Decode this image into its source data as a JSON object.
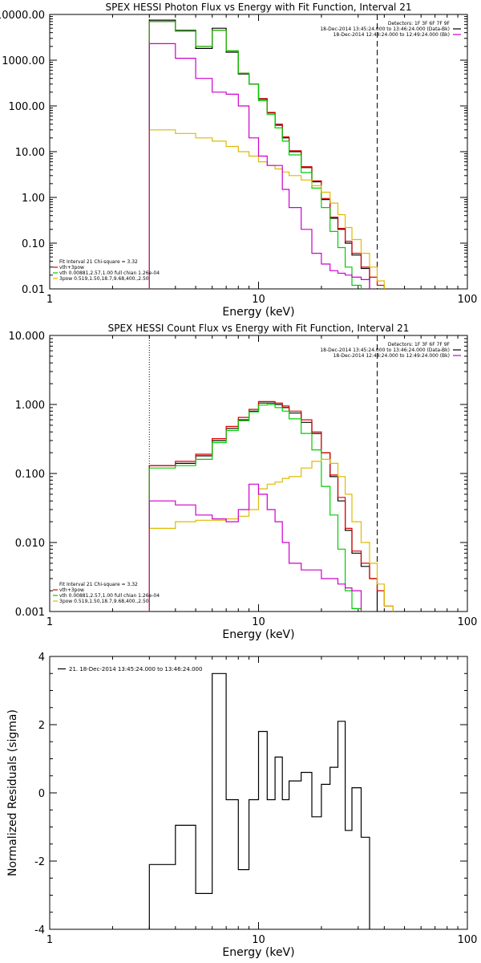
{
  "chart_data": [
    {
      "type": "line",
      "title": "SPEX HESSI Photon Flux vs Energy with Fit Function, Interval 21",
      "xlabel": "Energy (keV)",
      "ylabel": "",
      "xscale": "log",
      "yscale": "log",
      "xlim": [
        1,
        100
      ],
      "ylim": [
        0.01,
        10000
      ],
      "xticks": [
        1,
        10,
        100
      ],
      "xtick_labels": [
        "1",
        "10",
        "100"
      ],
      "yticks": [
        0.01,
        0.1,
        1,
        10,
        100,
        1000,
        10000
      ],
      "ytick_labels": [
        "0.01",
        "0.10",
        "1.00",
        "10.00",
        "100.00",
        "1000.00",
        "10000.00"
      ],
      "vlines": [
        {
          "x": 3,
          "style": "dotted",
          "color": "#000000"
        },
        {
          "x": 37,
          "style": "dashed",
          "color": "#000000"
        }
      ],
      "legend_top_right": {
        "lines": [
          {
            "text": "Detectors: 1F 3F 6F 7F 9F",
            "color": ""
          },
          {
            "text": "18-Dec-2014 13:45:24.000 to 13:46:24.000 (Data-Bk)",
            "color": "#000000"
          },
          {
            "text": "18-Dec-2014 12:48:24.000 to 12:49:24.000 (Bk)",
            "color": "#cc00cc"
          }
        ]
      },
      "legend_bottom_left": {
        "lines": [
          {
            "text": "Fit Interval 21    Chi-square = 3.32",
            "color": ""
          },
          {
            "text": "vth+3pow",
            "color": "#dd0000"
          },
          {
            "text": "vth 0.00881,2.57,1.00  full chian 1.26e-04",
            "color": "#00cc00"
          },
          {
            "text": "3pow 0.519,1.50,18.7,9.68,400.,2.50",
            "color": "#ddbb00"
          }
        ]
      },
      "bin_edges": [
        3,
        4,
        5,
        6,
        7,
        8,
        9,
        10,
        11,
        12,
        13,
        14,
        16,
        18,
        20,
        22,
        24,
        26,
        28,
        31,
        34,
        37,
        40
      ],
      "series": [
        {
          "name": "18-Dec-2014 13:45:24.000 to 13:46:24.000 (Data-Bk)",
          "color": "#000000",
          "values": [
            7500,
            4500,
            1800,
            5000,
            1500,
            500,
            300,
            140,
            70,
            38,
            20,
            10,
            4.5,
            2.2,
            0.9,
            0.35,
            0.2,
            0.1,
            0.055,
            0.028,
            null,
            null
          ]
        },
        {
          "name": "vth+3pow",
          "color": "#dd0000",
          "values": [
            7000,
            4300,
            2000,
            4500,
            1600,
            520,
            300,
            145,
            72,
            40,
            21,
            10.5,
            4.7,
            2.3,
            0.95,
            0.37,
            0.21,
            0.11,
            0.06,
            0.03,
            0.018,
            0.012
          ]
        },
        {
          "name": "vth",
          "color": "#00cc00",
          "values": [
            7000,
            4300,
            2000,
            4500,
            1600,
            520,
            300,
            130,
            65,
            33,
            17,
            8.5,
            3.5,
            1.6,
            0.6,
            0.18,
            0.08,
            0.03,
            0.012,
            null,
            null,
            null
          ]
        },
        {
          "name": "3pow",
          "color": "#ddbb00",
          "values": [
            30,
            25,
            20,
            17,
            13,
            10,
            8,
            6,
            5,
            4.2,
            3.6,
            3.0,
            2.4,
            1.8,
            1.3,
            0.75,
            0.42,
            0.22,
            0.12,
            0.06,
            0.03,
            0.015
          ]
        },
        {
          "name": "18-Dec-2014 12:48:24.000 to 12:49:24.000 (Bk)",
          "color": "#cc00cc",
          "values": [
            2300,
            1100,
            400,
            200,
            180,
            100,
            20,
            8,
            5,
            5,
            1.5,
            0.6,
            0.2,
            0.06,
            0.035,
            0.025,
            0.022,
            0.02,
            0.018,
            0.016,
            null,
            null
          ]
        }
      ]
    },
    {
      "type": "line",
      "title": "SPEX HESSI Count Flux vs Energy with Fit Function, Interval 21",
      "xlabel": "Energy (keV)",
      "ylabel": "",
      "xscale": "log",
      "yscale": "log",
      "xlim": [
        1,
        100
      ],
      "ylim": [
        0.001,
        10
      ],
      "xticks": [
        1,
        10,
        100
      ],
      "xtick_labels": [
        "1",
        "10",
        "100"
      ],
      "yticks": [
        0.001,
        0.01,
        0.1,
        1,
        10
      ],
      "ytick_labels": [
        "0.001",
        "0.010",
        "0.100",
        "1.000",
        "10.000"
      ],
      "vlines": [
        {
          "x": 3,
          "style": "dotted",
          "color": "#000000"
        },
        {
          "x": 37,
          "style": "dashed",
          "color": "#000000"
        }
      ],
      "legend_top_right": {
        "lines": [
          {
            "text": "Detectors: 1F 3F 6F 7F 9F",
            "color": ""
          },
          {
            "text": "18-Dec-2014 13:45:24.000 to 13:46:24.000 (Data-Bk)",
            "color": "#000000"
          },
          {
            "text": "18-Dec-2014 12:48:24.000 to 12:49:24.000 (Bk)",
            "color": "#cc00cc"
          }
        ]
      },
      "legend_bottom_left": {
        "lines": [
          {
            "text": "Fit Interval 21    Chi-square = 3.32",
            "color": ""
          },
          {
            "text": "vth+3pow",
            "color": "#dd0000"
          },
          {
            "text": "vth 0.00881,2.57,1.00  full chian 1.26e-04",
            "color": "#00cc00"
          },
          {
            "text": "3pow 0.519,1.50,18.7,9.68,400.,2.50",
            "color": "#ddbb00"
          }
        ]
      },
      "bin_edges": [
        3,
        4,
        5,
        6,
        7,
        8,
        9,
        10,
        11,
        12,
        13,
        14,
        16,
        18,
        20,
        22,
        24,
        26,
        28,
        31,
        34,
        37,
        40,
        44
      ],
      "series": [
        {
          "name": "18-Dec-2014 13:45:24.000 to 13:46:24.000 (Data-Bk)",
          "color": "#000000",
          "values": [
            0.13,
            0.14,
            0.18,
            0.3,
            0.45,
            0.6,
            0.8,
            1.05,
            1.05,
            1.0,
            0.9,
            0.75,
            0.55,
            0.38,
            0.2,
            0.09,
            0.04,
            0.015,
            0.007,
            0.0045,
            0.003,
            null,
            null
          ]
        },
        {
          "name": "vth+3pow",
          "color": "#dd0000",
          "values": [
            0.13,
            0.15,
            0.19,
            0.32,
            0.48,
            0.65,
            0.85,
            1.1,
            1.1,
            1.05,
            0.95,
            0.8,
            0.6,
            0.4,
            0.2,
            0.095,
            0.045,
            0.016,
            0.0075,
            0.005,
            0.003,
            0.002,
            0.0012
          ]
        },
        {
          "name": "vth",
          "color": "#00cc00",
          "values": [
            0.12,
            0.13,
            0.16,
            0.28,
            0.42,
            0.58,
            0.78,
            0.98,
            1.0,
            0.9,
            0.8,
            0.62,
            0.38,
            0.22,
            0.065,
            0.025,
            0.008,
            0.002,
            0.0011,
            null,
            null,
            null,
            null
          ]
        },
        {
          "name": "3pow",
          "color": "#ddbb00",
          "values": [
            0.016,
            0.02,
            0.021,
            0.021,
            0.022,
            0.024,
            0.03,
            0.06,
            0.07,
            0.075,
            0.085,
            0.09,
            0.12,
            0.15,
            0.16,
            0.14,
            0.09,
            0.05,
            0.02,
            0.01,
            0.005,
            0.0025,
            0.0012
          ]
        },
        {
          "name": "18-Dec-2014 12:48:24.000 to 12:49:24.000 (Bk)",
          "color": "#cc00cc",
          "values": [
            0.04,
            0.035,
            0.025,
            0.022,
            0.02,
            0.03,
            0.07,
            0.05,
            0.03,
            0.02,
            0.01,
            0.005,
            0.004,
            0.004,
            0.003,
            0.003,
            0.0025,
            0.0022,
            0.002,
            null,
            null,
            null,
            null
          ]
        }
      ]
    },
    {
      "type": "line",
      "title": "",
      "xlabel": "Energy (keV)",
      "ylabel": "Normalized Residuals (sigma)",
      "xscale": "log",
      "yscale": "linear",
      "xlim": [
        1,
        100
      ],
      "ylim": [
        -4,
        4
      ],
      "xticks": [
        1,
        10,
        100
      ],
      "xtick_labels": [
        "1",
        "10",
        "100"
      ],
      "yticks": [
        -4,
        -2,
        0,
        2,
        4
      ],
      "ytick_labels": [
        "-4",
        "-2",
        "0",
        "2",
        "4"
      ],
      "legend_top_left": {
        "lines": [
          {
            "text": "21. 18-Dec-2014 13:45:24.000 to 13:46:24.000",
            "color": "#000000"
          }
        ]
      },
      "bin_edges": [
        3,
        4,
        5,
        6,
        7,
        8,
        9,
        10,
        11,
        12,
        13,
        14,
        16,
        18,
        20,
        22,
        24,
        26,
        28,
        31,
        34,
        37
      ],
      "series": [
        {
          "name": "21. 18-Dec-2014 13:45:24.000 to 13:46:24.000",
          "color": "#000000",
          "values": [
            -2.1,
            -0.95,
            -2.95,
            3.5,
            -0.2,
            -2.25,
            -0.2,
            1.8,
            -0.2,
            1.05,
            -0.2,
            0.35,
            0.6,
            -0.7,
            0.25,
            0.75,
            2.1,
            -1.1,
            0.15,
            -1.3
          ]
        }
      ]
    }
  ]
}
